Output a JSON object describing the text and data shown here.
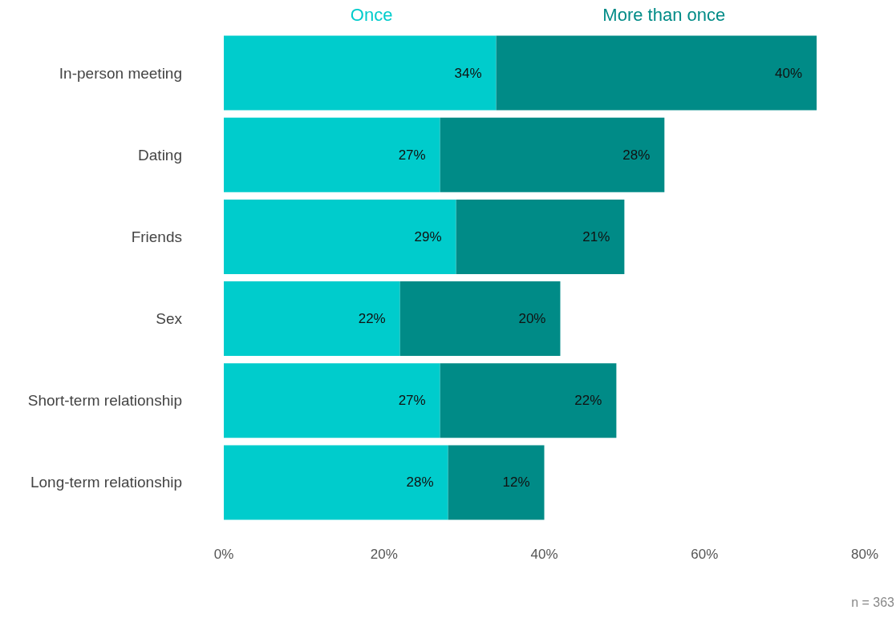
{
  "chart_data": {
    "type": "bar",
    "orientation": "horizontal",
    "stacked": true,
    "categories": [
      "In-person meeting",
      "Dating",
      "Friends",
      "Sex",
      "Short-term relationship",
      "Long-term relationship"
    ],
    "series": [
      {
        "name": "Once",
        "color": "#00cccc",
        "values": [
          34,
          27,
          29,
          22,
          27,
          28
        ],
        "value_labels": [
          "34%",
          "27%",
          "29%",
          "22%",
          "27%",
          "28%"
        ]
      },
      {
        "name": "More than once",
        "color": "#008b87",
        "values": [
          40,
          28,
          21,
          20,
          22,
          12
        ],
        "value_labels": [
          "40%",
          "28%",
          "21%",
          "20%",
          "22%",
          "12%"
        ]
      }
    ],
    "xlim": [
      0,
      80
    ],
    "xticks": [
      {
        "value": 0,
        "label": "0%"
      },
      {
        "value": 20,
        "label": "20%"
      },
      {
        "value": 40,
        "label": "40%"
      },
      {
        "value": 60,
        "label": "60%"
      },
      {
        "value": 80,
        "label": "80%"
      }
    ],
    "grid": false,
    "legend": "top",
    "annotations": [
      "n = 363"
    ]
  }
}
